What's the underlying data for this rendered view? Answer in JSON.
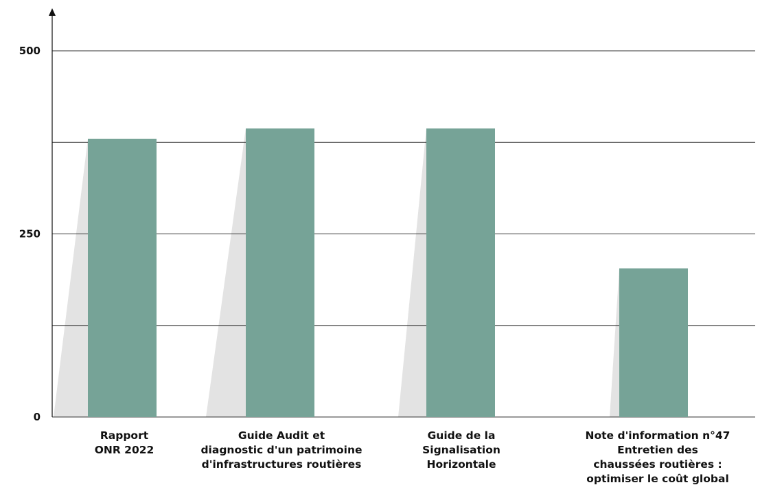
{
  "chart_data": {
    "type": "bar",
    "categories": [
      [
        "Rapport",
        "ONR 2022"
      ],
      [
        "Guide Audit et",
        "diagnostic d'un patrimoine",
        "d'infrastructures routières"
      ],
      [
        "Guide de la",
        "Signalisation",
        "Horizontale"
      ],
      [
        "Note d'information n°47",
        "Entretien des",
        "chaussées routières :",
        "optimiser le coût global"
      ]
    ],
    "values": [
      380,
      394,
      394,
      203
    ],
    "ylim": [
      0,
      500
    ],
    "yticks": [
      0,
      250,
      500
    ],
    "ytick_labels": [
      "0",
      "250",
      "500"
    ],
    "gridlines": [
      0,
      125,
      250,
      375,
      500
    ],
    "grid": true,
    "legend": "none",
    "colors": {
      "bar": "#76a397",
      "shadow": "#e3e3e3",
      "axis": "#111111",
      "grid": "#333333"
    }
  }
}
